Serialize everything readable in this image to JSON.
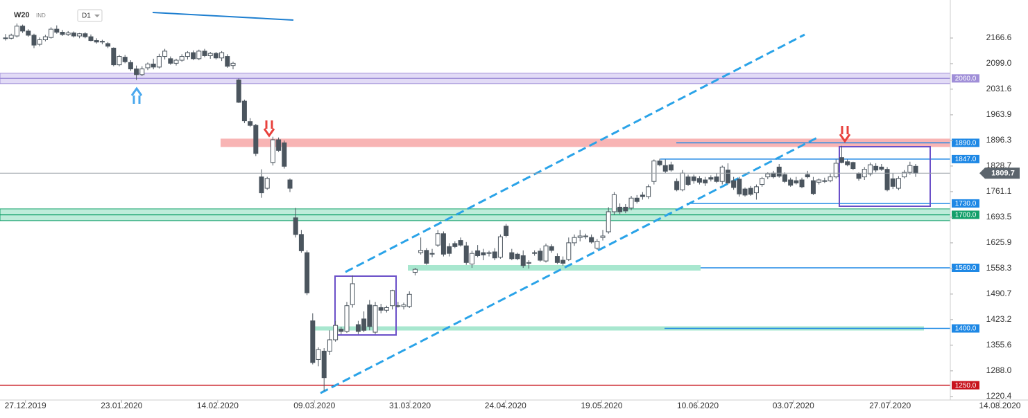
{
  "chart_data": {
    "type": "candlestick",
    "symbol": "W20",
    "exchange": "IND",
    "interval": "D1",
    "up_color": "#ffffff",
    "down_color": "#4b555e",
    "ylim": [
      1216.5,
      2267
    ],
    "xlim": [
      -0.975,
      179.75
    ],
    "yticks": [
      2166.6,
      {
        "value": 2099,
        "label": "2099.0"
      },
      2031.6,
      1963.9,
      1896.3,
      1828.7,
      1761.1,
      1693.5,
      1625.9,
      1558.3,
      1490.7,
      1423.2,
      1355.6,
      {
        "value": 1288,
        "label": "1288.0"
      },
      1220.4
    ],
    "xticks": [
      {
        "value": 3.5,
        "label": "27.12.2019"
      },
      {
        "value": 20.4,
        "label": "23.01.2020"
      },
      {
        "value": 37.3,
        "label": "14.02.2020"
      },
      {
        "value": 54.3,
        "label": "09.03.2020"
      },
      {
        "value": 71.1,
        "label": "31.03.2020"
      },
      {
        "value": 87.9,
        "label": "24.04.2020"
      },
      {
        "value": 104.8,
        "label": "19.05.2020"
      },
      {
        "value": 121.7,
        "label": "10.06.2020"
      },
      {
        "value": 138.5,
        "label": "03.07.2020"
      },
      {
        "value": 155.5,
        "label": "27.07.2020"
      },
      {
        "value": 174.8,
        "label": "14.08.2020"
      }
    ],
    "levels": [
      {
        "value": 2060,
        "label": "2060.0",
        "color": "#a08fd8"
      },
      {
        "value": 1890,
        "label": "1890.0",
        "color": "#1e88e5"
      },
      {
        "value": 1847,
        "label": "1847.0",
        "color": "#1e88e5"
      },
      {
        "value": 1730,
        "label": "1730.0",
        "color": "#1e88e5"
      },
      {
        "value": 1700,
        "label": "1700.0",
        "color": "#13a06b"
      },
      {
        "value": 1560,
        "label": "1560.0",
        "color": "#1e88e5"
      },
      {
        "value": 1400,
        "label": "1400.0",
        "color": "#1e88e5"
      },
      {
        "value": 1250,
        "label": "1250.0",
        "color": "#c8141e"
      }
    ],
    "last_price": {
      "value": 1809.7,
      "label": "1809.7",
      "color": "#5b646c"
    },
    "candles": [
      [
        2167,
        2177,
        2160,
        2165
      ],
      [
        2166,
        2178,
        2163,
        2174
      ],
      [
        2172,
        2205,
        2168,
        2198
      ],
      [
        2198,
        2202,
        2180,
        2185
      ],
      [
        2185,
        2190,
        2170,
        2174
      ],
      [
        2174,
        2178,
        2140,
        2148
      ],
      [
        2150,
        2168,
        2145,
        2162
      ],
      [
        2162,
        2175,
        2158,
        2170
      ],
      [
        2168,
        2195,
        2165,
        2190
      ],
      [
        2190,
        2200,
        2178,
        2182
      ],
      [
        2182,
        2188,
        2172,
        2176
      ],
      [
        2176,
        2185,
        2172,
        2180
      ],
      [
        2180,
        2184,
        2168,
        2172
      ],
      [
        2172,
        2180,
        2166,
        2178
      ],
      [
        2178,
        2182,
        2166,
        2170
      ],
      [
        2170,
        2176,
        2158,
        2160
      ],
      [
        2160,
        2166,
        2152,
        2156
      ],
      [
        2156,
        2162,
        2150,
        2158
      ],
      [
        2152,
        2156,
        2140,
        2145
      ],
      [
        2140,
        2142,
        2092,
        2096
      ],
      [
        2096,
        2122,
        2092,
        2118
      ],
      [
        2116,
        2122,
        2100,
        2104
      ],
      [
        2102,
        2108,
        2080,
        2085
      ],
      [
        2085,
        2094,
        2056,
        2070
      ],
      [
        2070,
        2092,
        2066,
        2085
      ],
      [
        2088,
        2102,
        2082,
        2098
      ],
      [
        2098,
        2112,
        2084,
        2090
      ],
      [
        2090,
        2125,
        2086,
        2118
      ],
      [
        2118,
        2138,
        2110,
        2132
      ],
      [
        2112,
        2118,
        2096,
        2100
      ],
      [
        2100,
        2112,
        2094,
        2108
      ],
      [
        2108,
        2124,
        2104,
        2118
      ],
      [
        2118,
        2132,
        2110,
        2128
      ],
      [
        2128,
        2134,
        2108,
        2112
      ],
      [
        2112,
        2136,
        2108,
        2132
      ],
      [
        2132,
        2138,
        2116,
        2120
      ],
      [
        2120,
        2130,
        2112,
        2126
      ],
      [
        2126,
        2130,
        2110,
        2114
      ],
      [
        2114,
        2132,
        2106,
        2128
      ],
      [
        2118,
        2124,
        2088,
        2092
      ],
      [
        2094,
        2104,
        2084,
        2100
      ],
      [
        2056,
        2060,
        1995,
        1997
      ],
      [
        2000,
        2004,
        1942,
        1948
      ],
      [
        1946,
        1955,
        1932,
        1936
      ],
      [
        1936,
        1940,
        1855,
        1862
      ],
      [
        1800,
        1820,
        1745,
        1758
      ],
      [
        1770,
        1800,
        1766,
        1796
      ],
      [
        1838,
        1906,
        1830,
        1898
      ],
      [
        1898,
        1904,
        1866,
        1870
      ],
      [
        1890,
        1896,
        1822,
        1828
      ],
      [
        1792,
        1796,
        1760,
        1770
      ],
      [
        1692,
        1718,
        1640,
        1648
      ],
      [
        1648,
        1660,
        1600,
        1605
      ],
      [
        1600,
        1606,
        1488,
        1494
      ],
      [
        1420,
        1440,
        1305,
        1310
      ],
      [
        1318,
        1350,
        1300,
        1344
      ],
      [
        1340,
        1348,
        1235,
        1270
      ],
      [
        1340,
        1395,
        1330,
        1370
      ],
      [
        1370,
        1420,
        1365,
        1408
      ],
      [
        1398,
        1404,
        1385,
        1392
      ],
      [
        1392,
        1470,
        1388,
        1460
      ],
      [
        1463,
        1540,
        1455,
        1518
      ],
      [
        1410,
        1420,
        1385,
        1392
      ],
      [
        1425,
        1445,
        1390,
        1395
      ],
      [
        1462,
        1475,
        1395,
        1405
      ],
      [
        1390,
        1470,
        1385,
        1460
      ],
      [
        1455,
        1465,
        1440,
        1448
      ],
      [
        1448,
        1460,
        1442,
        1455
      ],
      [
        1460,
        1502,
        1450,
        1500
      ],
      [
        1460,
        1470,
        1455,
        1458
      ],
      [
        1458,
        1468,
        1450,
        1462
      ],
      [
        1458,
        1498,
        1454,
        1490
      ],
      [
        1548,
        1560,
        1540,
        1556
      ],
      [
        1600,
        1640,
        1595,
        1606
      ],
      [
        1606,
        1612,
        1568,
        1572
      ],
      [
        1598,
        1610,
        1588,
        1596
      ],
      [
        1620,
        1660,
        1615,
        1650
      ],
      [
        1650,
        1656,
        1590,
        1596
      ],
      [
        1616,
        1625,
        1590,
        1598
      ],
      [
        1624,
        1630,
        1612,
        1616
      ],
      [
        1632,
        1640,
        1616,
        1620
      ],
      [
        1618,
        1628,
        1568,
        1574
      ],
      [
        1570,
        1605,
        1560,
        1598
      ],
      [
        1605,
        1620,
        1588,
        1592
      ],
      [
        1600,
        1610,
        1580,
        1594
      ],
      [
        1598,
        1605,
        1590,
        1600
      ],
      [
        1602,
        1612,
        1580,
        1586
      ],
      [
        1588,
        1648,
        1584,
        1642
      ],
      [
        1670,
        1676,
        1640,
        1645
      ],
      [
        1600,
        1610,
        1580,
        1584
      ],
      [
        1596,
        1600,
        1580,
        1584
      ],
      [
        1592,
        1606,
        1560,
        1566
      ],
      [
        1572,
        1580,
        1558,
        1574
      ],
      [
        1600,
        1606,
        1592,
        1598
      ],
      [
        1604,
        1612,
        1576,
        1580
      ],
      [
        1578,
        1624,
        1574,
        1618
      ],
      [
        1616,
        1622,
        1600,
        1606
      ],
      [
        1590,
        1598,
        1570,
        1574
      ],
      [
        1580,
        1590,
        1566,
        1572
      ],
      [
        1582,
        1640,
        1578,
        1626
      ],
      [
        1626,
        1648,
        1618,
        1640
      ],
      [
        1640,
        1660,
        1630,
        1644
      ],
      [
        1642,
        1650,
        1636,
        1644
      ],
      [
        1640,
        1648,
        1624,
        1628
      ],
      [
        1612,
        1636,
        1608,
        1630
      ],
      [
        1640,
        1660,
        1632,
        1644
      ],
      [
        1655,
        1720,
        1650,
        1708
      ],
      [
        1708,
        1760,
        1700,
        1753
      ],
      [
        1720,
        1730,
        1702,
        1708
      ],
      [
        1720,
        1728,
        1704,
        1710
      ],
      [
        1718,
        1750,
        1712,
        1744
      ],
      [
        1744,
        1752,
        1730,
        1735
      ],
      [
        1752,
        1760,
        1740,
        1748
      ],
      [
        1748,
        1780,
        1742,
        1774
      ],
      [
        1788,
        1846,
        1780,
        1842
      ],
      [
        1842,
        1848,
        1828,
        1832
      ],
      [
        1830,
        1846,
        1810,
        1815
      ],
      [
        1832,
        1840,
        1814,
        1818
      ],
      [
        1788,
        1796,
        1762,
        1766
      ],
      [
        1766,
        1818,
        1762,
        1810
      ],
      [
        1800,
        1806,
        1776,
        1780
      ],
      [
        1800,
        1806,
        1782,
        1790
      ],
      [
        1796,
        1802,
        1780,
        1786
      ],
      [
        1792,
        1800,
        1776,
        1784
      ],
      [
        1798,
        1804,
        1788,
        1794
      ],
      [
        1800,
        1810,
        1784,
        1788
      ],
      [
        1788,
        1830,
        1780,
        1826
      ],
      [
        1818,
        1836,
        1780,
        1784
      ],
      [
        1790,
        1800,
        1766,
        1772
      ],
      [
        1794,
        1800,
        1748,
        1755
      ],
      [
        1768,
        1772,
        1748,
        1752
      ],
      [
        1770,
        1776,
        1750,
        1754
      ],
      [
        1758,
        1780,
        1740,
        1774
      ],
      [
        1780,
        1800,
        1774,
        1796
      ],
      [
        1800,
        1812,
        1794,
        1808
      ],
      [
        1810,
        1816,
        1796,
        1800
      ],
      [
        1826,
        1834,
        1798,
        1802
      ],
      [
        1806,
        1812,
        1784,
        1788
      ],
      [
        1792,
        1798,
        1774,
        1778
      ],
      [
        1790,
        1800,
        1780,
        1784
      ],
      [
        1792,
        1798,
        1770,
        1774
      ],
      [
        1806,
        1816,
        1796,
        1800
      ],
      [
        1790,
        1800,
        1752,
        1756
      ],
      [
        1786,
        1796,
        1780,
        1792
      ],
      [
        1790,
        1798,
        1784,
        1788
      ],
      [
        1790,
        1808,
        1786,
        1800
      ],
      [
        1800,
        1846,
        1796,
        1836
      ],
      [
        1851,
        1882,
        1836,
        1838
      ],
      [
        1840,
        1846,
        1828,
        1832
      ],
      [
        1838,
        1840,
        1818,
        1822
      ],
      [
        1808,
        1812,
        1790,
        1796
      ],
      [
        1800,
        1826,
        1792,
        1820
      ],
      [
        1808,
        1838,
        1802,
        1832
      ],
      [
        1828,
        1836,
        1812,
        1818
      ],
      [
        1826,
        1834,
        1816,
        1820
      ],
      [
        1820,
        1826,
        1762,
        1766
      ],
      [
        1795,
        1810,
        1768,
        1775
      ],
      [
        1770,
        1802,
        1765,
        1796
      ],
      [
        1800,
        1818,
        1796,
        1812
      ],
      [
        1812,
        1840,
        1806,
        1830
      ],
      [
        1828,
        1834,
        1800,
        1809.7
      ]
    ]
  }
}
